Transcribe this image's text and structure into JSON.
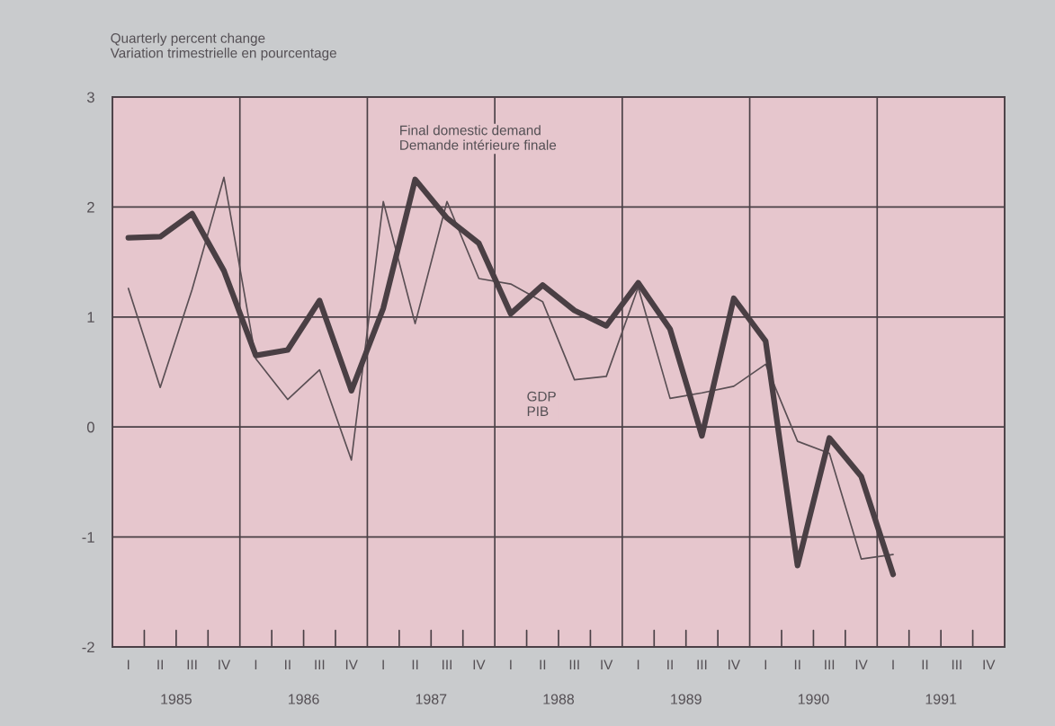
{
  "chart_data": {
    "type": "line",
    "ylabel": "Quarterly percent change\nVariation trimestrielle en pourcentage",
    "categories": [
      "I",
      "II",
      "III",
      "IV",
      "I",
      "II",
      "III",
      "IV",
      "I",
      "II",
      "III",
      "IV",
      "I",
      "II",
      "III",
      "IV",
      "I",
      "II",
      "III",
      "IV",
      "I",
      "II",
      "III",
      "IV",
      "I",
      "II",
      "III",
      "IV"
    ],
    "series": [
      {
        "name": "Final domestic demand\nDemande intérieure finale",
        "color": "#4a3f44",
        "values": [
          1.72,
          1.73,
          1.94,
          1.42,
          0.65,
          0.7,
          1.15,
          0.33,
          1.08,
          2.25,
          1.9,
          1.67,
          1.03,
          1.29,
          1.06,
          0.92,
          1.31,
          0.89,
          -0.08,
          1.17,
          0.78,
          -1.26,
          -0.1,
          -0.45,
          -1.34,
          null,
          null,
          null
        ]
      },
      {
        "name": "GDP\nPIB",
        "color": "#5a4f54",
        "values": [
          1.26,
          0.36,
          1.25,
          2.27,
          0.62,
          0.25,
          0.52,
          -0.3,
          2.05,
          0.94,
          2.05,
          1.35,
          1.3,
          1.14,
          0.43,
          0.46,
          1.27,
          0.26,
          0.31,
          0.37,
          0.57,
          -0.13,
          -0.24,
          -1.2,
          -1.16,
          null,
          null,
          null
        ]
      }
    ],
    "ylim": [
      -2,
      3
    ],
    "yticks": [
      -2,
      -1,
      0,
      1,
      2,
      3
    ],
    "grid": "y",
    "legend": false,
    "annotations": [
      "1985",
      "1986",
      "1987",
      "1988",
      "1989",
      "1990",
      "1991"
    ]
  }
}
